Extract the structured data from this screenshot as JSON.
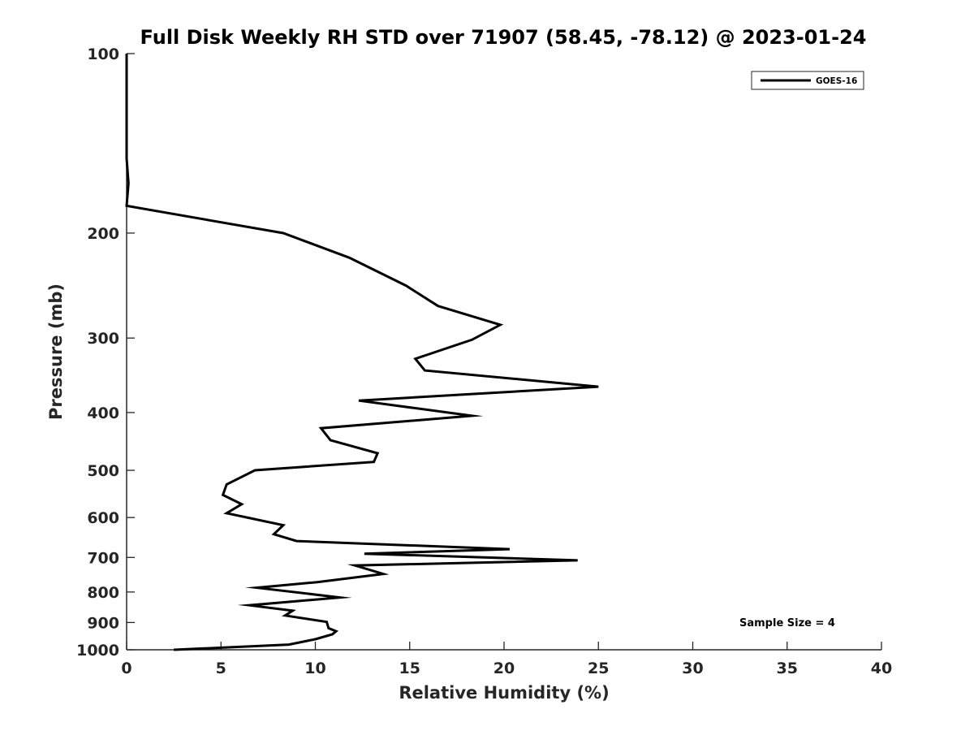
{
  "chart_data": {
    "type": "line",
    "title": "Full Disk Weekly RH STD over 71907 (58.45, -78.12) @ 2023-01-24",
    "xlabel": "Relative Humidity (%)",
    "ylabel": "Pressure (mb)",
    "xlim": [
      0,
      40
    ],
    "ylim": [
      1000,
      100
    ],
    "yscale": "log",
    "y_reversed": true,
    "grid": false,
    "legend_position": "top-right",
    "xticks": [
      0,
      5,
      10,
      15,
      20,
      25,
      30,
      35,
      40
    ],
    "xtick_labels": [
      "0",
      "5",
      "10",
      "15",
      "20",
      "25",
      "30",
      "35",
      "40"
    ],
    "yticks": [
      100,
      200,
      300,
      400,
      500,
      600,
      700,
      800,
      900,
      1000
    ],
    "ytick_labels": [
      "100",
      "200",
      "300",
      "400",
      "500",
      "600",
      "700",
      "800",
      "900",
      "1000"
    ],
    "annotation": "Sample Size = 4",
    "series": [
      {
        "name": "GOES-16",
        "color": "#000000",
        "points": [
          [
            0.0,
            100
          ],
          [
            0.0,
            150
          ],
          [
            0.1,
            165
          ],
          [
            0.0,
            180
          ],
          [
            8.3,
            200
          ],
          [
            11.8,
            220
          ],
          [
            14.8,
            245
          ],
          [
            16.5,
            265
          ],
          [
            19.8,
            285
          ],
          [
            18.3,
            302
          ],
          [
            15.3,
            325
          ],
          [
            15.8,
            340
          ],
          [
            25.0,
            362
          ],
          [
            12.3,
            382
          ],
          [
            18.3,
            405
          ],
          [
            10.3,
            425
          ],
          [
            10.8,
            445
          ],
          [
            13.3,
            468
          ],
          [
            13.1,
            484
          ],
          [
            6.8,
            500
          ],
          [
            5.3,
            528
          ],
          [
            5.1,
            550
          ],
          [
            6.1,
            570
          ],
          [
            5.3,
            590
          ],
          [
            8.3,
            618
          ],
          [
            7.8,
            640
          ],
          [
            9.0,
            657
          ],
          [
            20.3,
            678
          ],
          [
            12.6,
            690
          ],
          [
            23.9,
            708
          ],
          [
            12.1,
            722
          ],
          [
            13.6,
            746
          ],
          [
            10.1,
            770
          ],
          [
            6.9,
            787
          ],
          [
            11.3,
            817
          ],
          [
            6.5,
            842
          ],
          [
            8.8,
            860
          ],
          [
            8.4,
            876
          ],
          [
            10.6,
            898
          ],
          [
            10.7,
            920
          ],
          [
            11.1,
            931
          ],
          [
            10.9,
            942
          ],
          [
            10.0,
            960
          ],
          [
            8.6,
            980
          ],
          [
            2.5,
            1000
          ]
        ]
      }
    ]
  }
}
